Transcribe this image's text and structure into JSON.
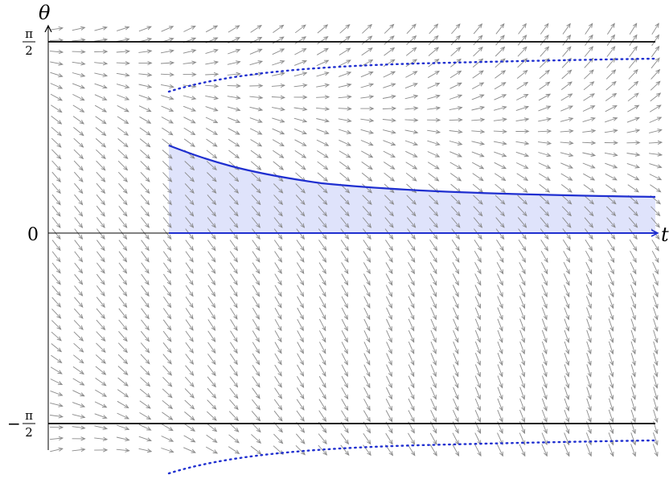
{
  "axes": {
    "x_label": "t",
    "y_label": "θ",
    "tick_zero": "0",
    "tick_top": {
      "numerator": "π",
      "denominator": "2"
    },
    "tick_bottom": {
      "sign": "−",
      "numerator": "π",
      "denominator": "2"
    }
  },
  "colors": {
    "field_arrows": "#8a8a8a",
    "solution_curve": "#1f2fd0",
    "region_fill": "#dfe3fb",
    "boundary_lines": "#000000"
  },
  "field": {
    "nx": 28,
    "ny": 38,
    "note_type": "slope-field"
  }
}
